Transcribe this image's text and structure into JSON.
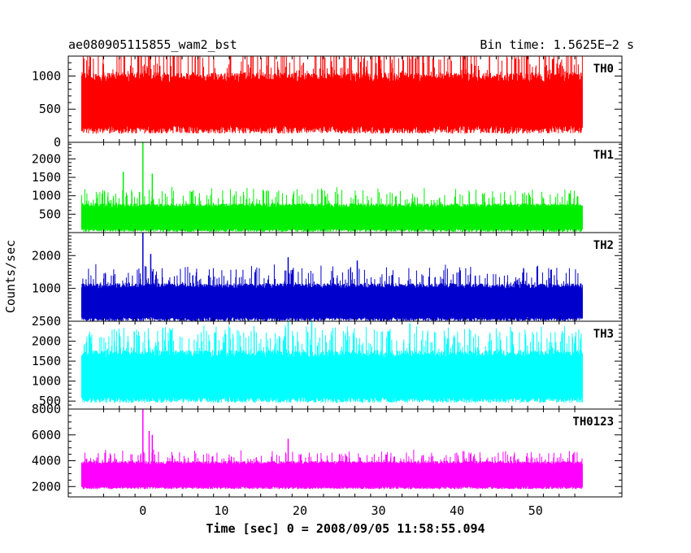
{
  "header": {
    "left": "ae080905115855_wam2_bst",
    "right": "Bin time: 1.5625E−2 s"
  },
  "chart_data": {
    "type": "line",
    "xlabel": "Time [sec] 0 = 2008/09/05 11:58:55.094",
    "ylabel": "Counts/sec",
    "xlim": [
      -9.5,
      61
    ],
    "x_range": [
      -7.8,
      56.0
    ],
    "x_ticks": [
      0,
      10,
      20,
      30,
      40,
      50
    ],
    "panels": [
      {
        "name": "TH0",
        "color": "#ff0000",
        "ylim": [
          0,
          1300
        ],
        "y_ticks": [
          0,
          500,
          1000
        ],
        "baseline_low": 250,
        "baseline_high": 950,
        "noise": 150,
        "spike_frac": 0.25,
        "spike_amp": 500,
        "spikes": []
      },
      {
        "name": "TH1",
        "color": "#00ee00",
        "ylim": [
          0,
          2450
        ],
        "y_ticks": [
          500,
          1000,
          1500,
          2000
        ],
        "baseline_low": 100,
        "baseline_high": 720,
        "noise": 100,
        "spike_frac": 0.2,
        "spike_amp": 450,
        "spikes": [
          {
            "x": 0.0,
            "y": 2450
          },
          {
            "x": 1.2,
            "y": 1600
          },
          {
            "x": -2.5,
            "y": 1650
          }
        ]
      },
      {
        "name": "TH2",
        "color": "#0000cc",
        "ylim": [
          0,
          2700
        ],
        "y_ticks": [
          1000,
          2000
        ],
        "baseline_low": 120,
        "baseline_high": 1050,
        "noise": 150,
        "spike_frac": 0.2,
        "spike_amp": 600,
        "spikes": [
          {
            "x": 0.0,
            "y": 2700
          },
          {
            "x": 1.0,
            "y": 2050
          },
          {
            "x": 18.5,
            "y": 1950
          },
          {
            "x": 27.3,
            "y": 1850
          }
        ]
      },
      {
        "name": "TH3",
        "color": "#00ffff",
        "ylim": [
          300,
          2500
        ],
        "y_ticks": [
          500,
          1000,
          1500,
          2000,
          2500
        ],
        "baseline_low": 600,
        "baseline_high": 1650,
        "noise": 180,
        "spike_frac": 0.25,
        "spike_amp": 650,
        "spikes": [
          {
            "x": 18.5,
            "y": 2500
          },
          {
            "x": 21.5,
            "y": 2500
          },
          {
            "x": 34.0,
            "y": 2450
          }
        ]
      },
      {
        "name": "TH0123",
        "color": "#ff00ff",
        "ylim": [
          1200,
          8000
        ],
        "y_ticks": [
          2000,
          4000,
          6000,
          8000
        ],
        "baseline_low": 2000,
        "baseline_high": 3800,
        "noise": 250,
        "spike_frac": 0.2,
        "spike_amp": 900,
        "spikes": [
          {
            "x": 0.0,
            "y": 8000
          },
          {
            "x": 0.8,
            "y": 6300
          },
          {
            "x": 1.2,
            "y": 6000
          },
          {
            "x": 18.5,
            "y": 5700
          }
        ]
      }
    ]
  }
}
